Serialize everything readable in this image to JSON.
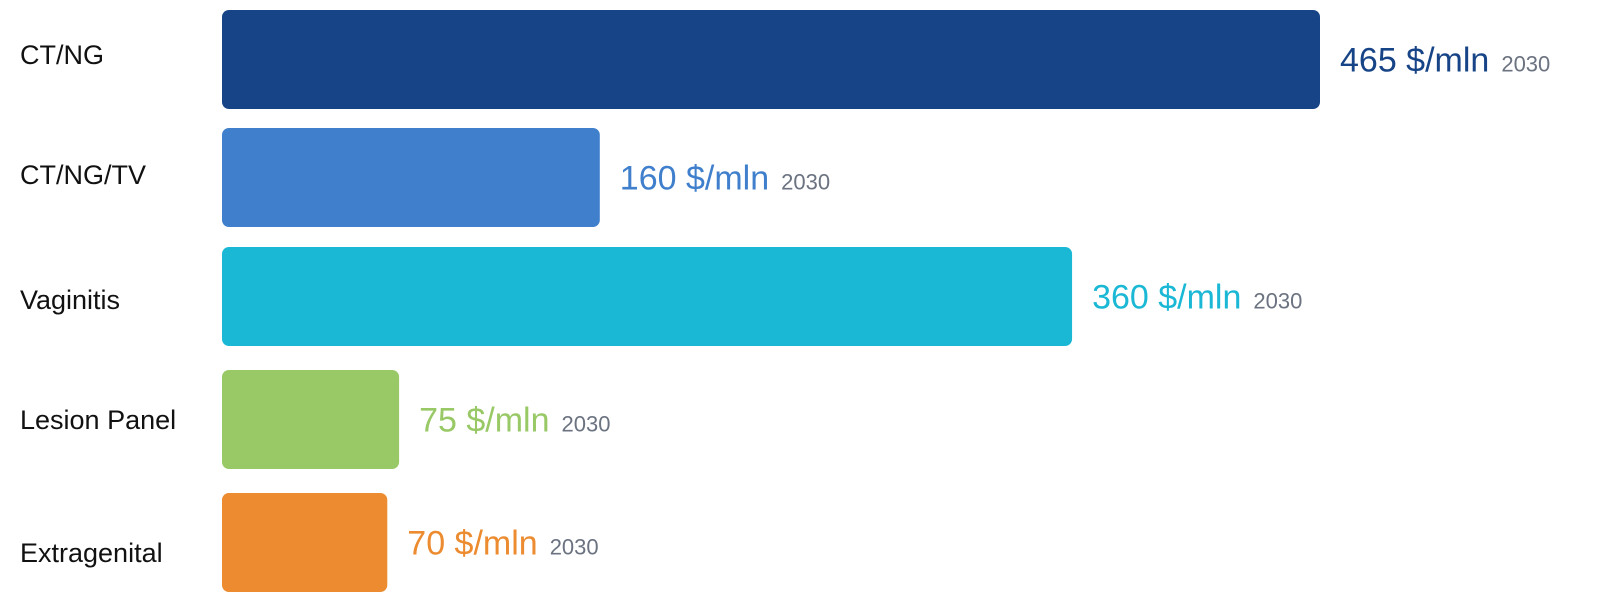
{
  "chart_data": {
    "type": "bar",
    "orientation": "horizontal",
    "categories": [
      "CT/NG",
      "CT/NG/TV",
      "Vaginitis",
      "Lesion Panel",
      "Extragenital"
    ],
    "values": [
      465,
      160,
      360,
      75,
      70
    ],
    "value_unit": "$/mln",
    "year": "2030",
    "value_labels": [
      "465 $/mln",
      "160 $/mln",
      "360 $/mln",
      "75 $/mln",
      "70 $/mln"
    ],
    "colors": [
      "#164486",
      "#3f7fcc",
      "#1bb8d6",
      "#99c966",
      "#ec8b2f"
    ],
    "year_label_color": "#6b7280",
    "category_label_color": "#111111",
    "grid": false,
    "axes_visible": false
  }
}
